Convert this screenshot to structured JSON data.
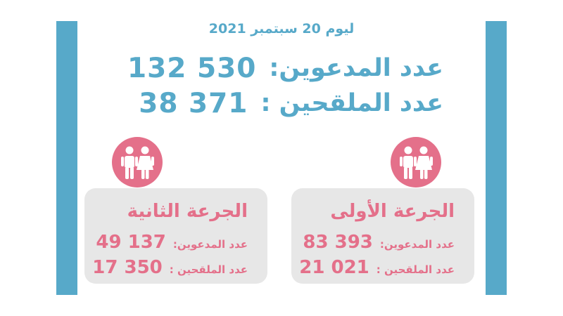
{
  "header": {
    "date": "ليوم 20 سبتمبر 2021"
  },
  "totals": {
    "invited_label": "عدد المدعوين:",
    "invited_value": "132 530",
    "vaccinated_label": "عدد الملقحين :",
    "vaccinated_value": "38 371"
  },
  "doses": [
    {
      "title": "الجرعة الأولى",
      "invited_label": "عدد المدعوين:",
      "invited_value": "83 393",
      "vaccinated_label": "عدد الملقحين :",
      "vaccinated_value": "21 021"
    },
    {
      "title": "الجرعة الثانية",
      "invited_label": "عدد المدعوين:",
      "invited_value": "49 137",
      "vaccinated_label": "عدد الملقحين :",
      "vaccinated_value": "17 350"
    }
  ],
  "icons": {
    "dose_icon": "people-icon"
  },
  "colors": {
    "accent_blue": "#57a9c9",
    "accent_pink": "#e4708a",
    "card_gray": "#e7e7e7"
  }
}
